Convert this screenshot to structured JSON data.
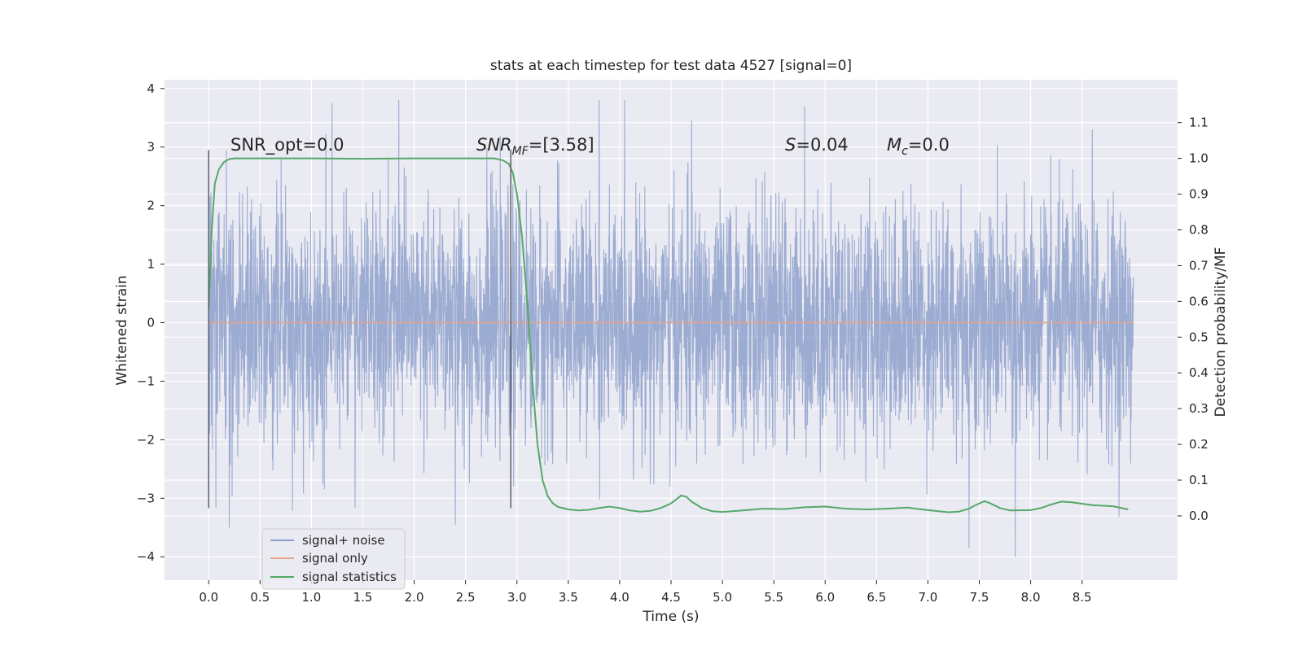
{
  "chart_data": {
    "type": "line",
    "title": "stats at each timestep for test data 4527 [signal=0]",
    "xlabel": "Time (s)",
    "ylabel": "Whitened strain",
    "y2label": "Detection probability/MF",
    "xlim": [
      -0.43,
      9.43
    ],
    "ylim": [
      -4.4,
      4.15
    ],
    "y2lim": [
      -0.18,
      1.22
    ],
    "x_ticks": [
      "0.0",
      "0.5",
      "1.0",
      "1.5",
      "2.0",
      "2.5",
      "3.0",
      "3.5",
      "4.0",
      "4.5",
      "5.0",
      "5.5",
      "6.0",
      "6.5",
      "7.0",
      "7.5",
      "8.0",
      "8.5"
    ],
    "y_ticks": [
      "4",
      "3",
      "2",
      "1",
      "0",
      "−1",
      "−2",
      "−3",
      "−4"
    ],
    "y2_ticks": [
      "1.1",
      "1.0",
      "0.9",
      "0.8",
      "0.7",
      "0.6",
      "0.5",
      "0.4",
      "0.3",
      "0.2",
      "0.1",
      "0.0"
    ],
    "grid": true,
    "legend_position": "lower-left",
    "annotations": {
      "snr_opt": "SNR_opt=0.0",
      "snr_mf_label": "SNR",
      "snr_mf_sub": "MF",
      "snr_mf_value": "=[3.58]",
      "s_label": "S",
      "s_value": "=0.04",
      "mc_label": "M",
      "mc_sub": "c",
      "mc_value": "=0.0"
    },
    "vertical_markers_s": [
      0.0,
      2.94
    ],
    "series": [
      {
        "name": "signal+ noise",
        "color": "#8da0cb",
        "axis": "left",
        "t_start": 0.0,
        "t_end": 9.0,
        "mean": 0.0,
        "std": 1.0,
        "min": -4.0,
        "max": 3.8,
        "notable_extremes": [
          [
            0.2,
            -3.5
          ],
          [
            1.2,
            3.75
          ],
          [
            1.85,
            3.8
          ],
          [
            2.4,
            -3.45
          ],
          [
            3.8,
            3.8
          ],
          [
            4.7,
            3.45
          ],
          [
            5.8,
            3.7
          ],
          [
            7.4,
            -3.85
          ],
          [
            7.85,
            -4.0
          ],
          [
            8.6,
            3.3
          ]
        ]
      },
      {
        "name": "signal only",
        "color": "#e8a488",
        "axis": "left",
        "t": [
          0.0,
          9.0
        ],
        "values": [
          0.0,
          0.0
        ]
      },
      {
        "name": "signal statistics",
        "color": "#55a868",
        "axis": "right",
        "t": [
          0.0,
          0.03,
          0.06,
          0.1,
          0.15,
          0.2,
          0.25,
          0.3,
          0.5,
          1.0,
          1.5,
          2.0,
          2.5,
          2.78,
          2.86,
          2.92,
          2.96,
          3.0,
          3.05,
          3.1,
          3.15,
          3.2,
          3.25,
          3.3,
          3.35,
          3.4,
          3.5,
          3.6,
          3.7,
          3.8,
          3.9,
          4.0,
          4.1,
          4.2,
          4.3,
          4.4,
          4.5,
          4.55,
          4.6,
          4.65,
          4.7,
          4.8,
          4.9,
          5.0,
          5.2,
          5.4,
          5.6,
          5.8,
          6.0,
          6.2,
          6.4,
          6.6,
          6.8,
          7.0,
          7.2,
          7.3,
          7.4,
          7.45,
          7.5,
          7.55,
          7.6,
          7.7,
          7.8,
          8.0,
          8.1,
          8.2,
          8.3,
          8.4,
          8.6,
          8.8,
          8.95
        ],
        "values": [
          0.58,
          0.8,
          0.93,
          0.97,
          0.99,
          0.998,
          1.0,
          1.0,
          1.0,
          1.0,
          0.999,
          1.0,
          1.0,
          1.0,
          0.995,
          0.985,
          0.96,
          0.9,
          0.78,
          0.6,
          0.38,
          0.2,
          0.1,
          0.055,
          0.035,
          0.025,
          0.018,
          0.015,
          0.017,
          0.022,
          0.026,
          0.022,
          0.015,
          0.012,
          0.014,
          0.022,
          0.035,
          0.046,
          0.057,
          0.053,
          0.04,
          0.022,
          0.013,
          0.011,
          0.015,
          0.02,
          0.019,
          0.024,
          0.026,
          0.02,
          0.018,
          0.02,
          0.023,
          0.016,
          0.01,
          0.012,
          0.02,
          0.028,
          0.035,
          0.041,
          0.036,
          0.022,
          0.015,
          0.016,
          0.022,
          0.032,
          0.04,
          0.038,
          0.03,
          0.027,
          0.018
        ]
      }
    ]
  }
}
